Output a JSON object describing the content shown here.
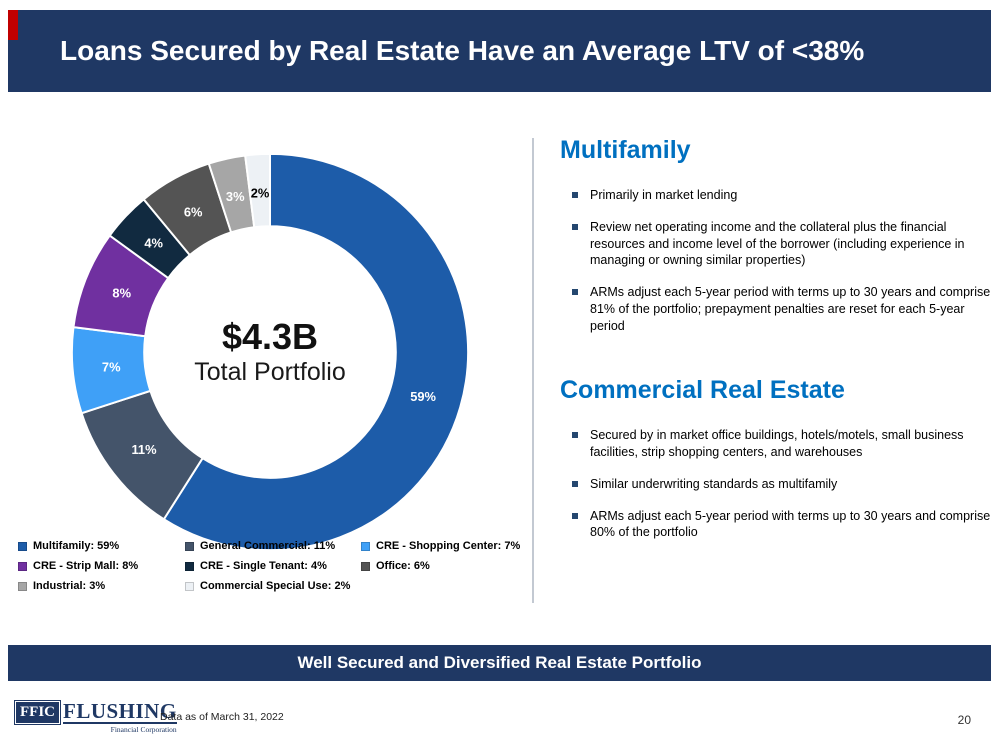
{
  "header": {
    "title": "Loans Secured by Real Estate Have an Average LTV of <38%"
  },
  "chart_data": {
    "type": "pie",
    "donut": true,
    "center_value": "$4.3B",
    "center_label": "Total Portfolio",
    "start_angle_deg": 0,
    "direction": "clockwise",
    "segments": [
      {
        "label": "Multifamily",
        "value": 59,
        "color": "#1D5CA9",
        "text_color": "#ffffff"
      },
      {
        "label": "General Commercial",
        "value": 11,
        "color": "#44546A",
        "text_color": "#ffffff"
      },
      {
        "label": "CRE - Shopping Center",
        "value": 7,
        "color": "#3FA0F7",
        "text_color": "#ffffff"
      },
      {
        "label": "CRE - Strip Mall",
        "value": 8,
        "color": "#7030A0",
        "text_color": "#ffffff"
      },
      {
        "label": "CRE - Single Tenant",
        "value": 4,
        "color": "#112A40",
        "text_color": "#ffffff"
      },
      {
        "label": "Office",
        "value": 6,
        "color": "#545454",
        "text_color": "#ffffff"
      },
      {
        "label": "Industrial",
        "value": 3,
        "color": "#A6A6A6",
        "text_color": "#ffffff"
      },
      {
        "label": "Commercial Special Use",
        "value": 2,
        "color": "#EDF1F5",
        "text_color": "#000000"
      }
    ]
  },
  "legend": {
    "columns": [
      [
        {
          "label": "Multifamily: 59%",
          "color": "#1D5CA9"
        },
        {
          "label": "CRE - Strip Mall: 8%",
          "color": "#7030A0"
        },
        {
          "label": "Industrial: 3%",
          "color": "#A6A6A6"
        }
      ],
      [
        {
          "label": "General Commercial: 11%",
          "color": "#44546A"
        },
        {
          "label": "CRE - Single Tenant: 4%",
          "color": "#112A40"
        },
        {
          "label": "Commercial Special Use: 2%",
          "color": "#EDF1F5"
        }
      ],
      [
        {
          "label": "CRE - Shopping Center: 7%",
          "color": "#3FA0F7"
        },
        {
          "label": "Office: 6%",
          "color": "#545454"
        }
      ]
    ]
  },
  "right": {
    "sections": [
      {
        "heading": "Multifamily",
        "bullets": [
          "Primarily in market lending",
          "Review net operating income and the collateral plus the financial resources and income level of the borrower (including experience in managing or owning similar properties)",
          "ARMs adjust each 5-year period with terms up to 30 years and comprise 81% of the portfolio; prepayment penalties are reset for each 5-year period"
        ]
      },
      {
        "heading": "Commercial Real Estate",
        "bullets": [
          "Secured by in market office buildings, hotels/motels, small business facilities, strip shopping centers, and warehouses",
          "Similar underwriting standards as multifamily",
          "ARMs adjust each 5-year period with terms up to 30 years and comprise 80% of the portfolio"
        ]
      }
    ]
  },
  "banner": {
    "text": "Well Secured and Diversified Real Estate Portfolio"
  },
  "footer": {
    "logo_ffic": "FFIC",
    "logo_name": "FLUSHING",
    "logo_sub": "Financial Corporation",
    "data_note": "Data as of March 31, 2022",
    "page_number": "20"
  },
  "colors": {
    "navy": "#1F3864",
    "heading_blue": "#0070C0",
    "accent_red": "#C00000"
  }
}
